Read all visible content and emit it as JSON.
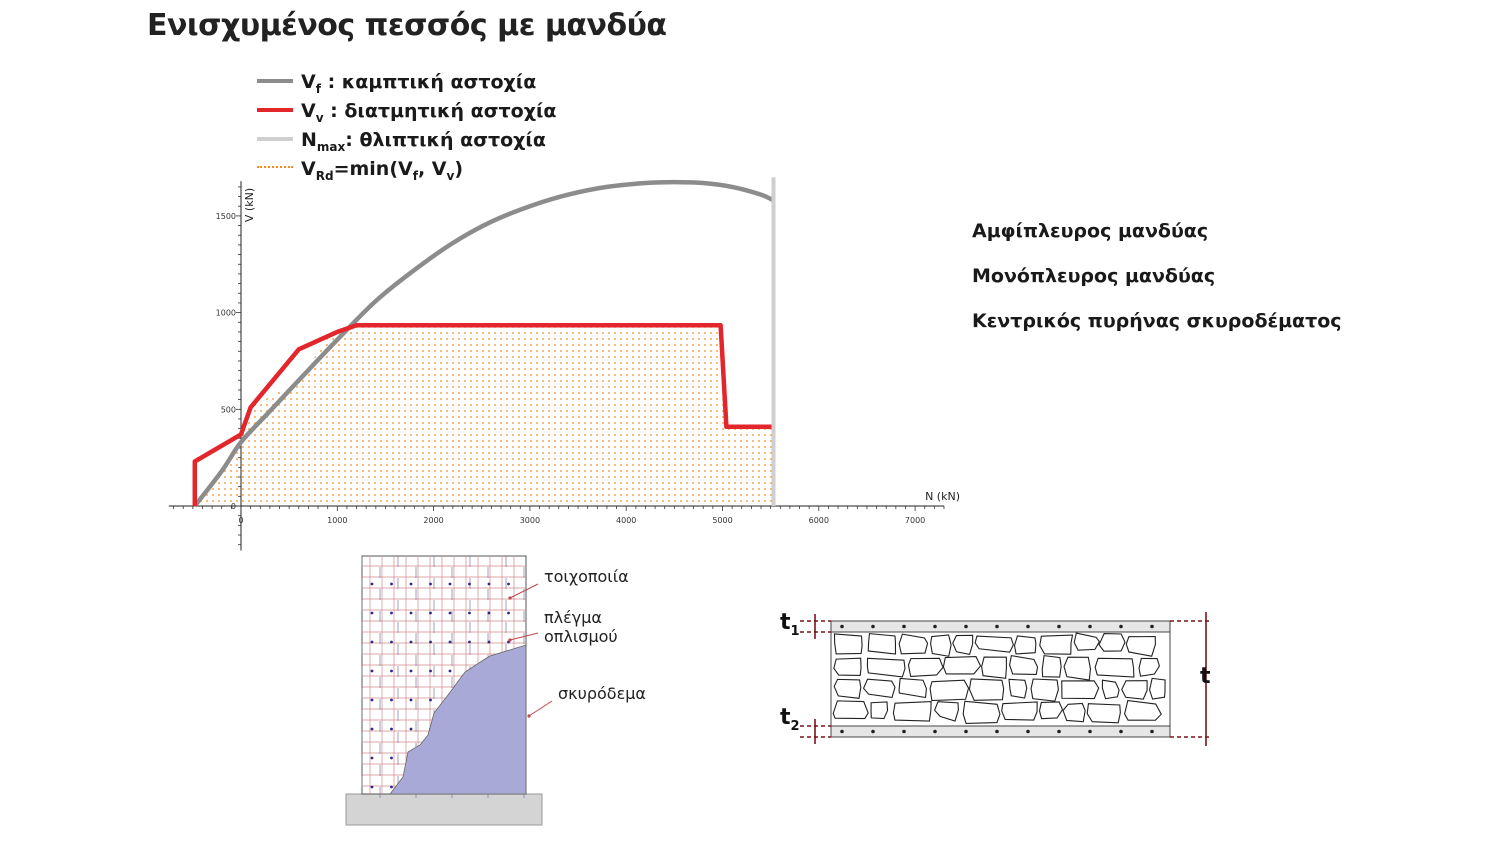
{
  "page": {
    "title": "Ενισχυμένος πεσσός με μανδύα"
  },
  "legend": [
    {
      "symbol": "V",
      "sub": "f",
      "text": "   : καμπτική αστοχία",
      "color": "#8c8c8c",
      "style": "solid"
    },
    {
      "symbol": "V",
      "sub": "v",
      "text": " : διατμητική αστοχία",
      "color": "#e3262b",
      "style": "solid"
    },
    {
      "symbol": "N",
      "sub": "max",
      "text": ": θλιπτική αστοχία",
      "color": "#cfcfcf",
      "style": "solid"
    },
    {
      "symbol": "V",
      "sub": "Rd",
      "text": "=min(V",
      "sub2": "f",
      "text2": ", V",
      "sub3": "v",
      "text3": ")",
      "color": "#f28b1e",
      "style": "dotted"
    }
  ],
  "options": [
    {
      "label": "Αμφίπλευρος μανδύας"
    },
    {
      "label": "Μονόπλευρος μανδύας"
    },
    {
      "label": "Κεντρικός πυρήνας σκυροδέματος"
    }
  ],
  "chart_data": {
    "type": "line",
    "xlabel": "N (kN)",
    "ylabel": "V (kN)",
    "xlim": [
      -750,
      7300
    ],
    "ylim": [
      -230,
      1680
    ],
    "x_ticks": [
      0,
      1000,
      2000,
      3000,
      4000,
      5000,
      6000,
      7000
    ],
    "x_tick_labels": [
      "0",
      "1000",
      "2000",
      "3000",
      "4000",
      "5000",
      "6000",
      "7000"
    ],
    "y_ticks": [
      0,
      500,
      1000,
      1500
    ],
    "y_tick_labels": [
      "0",
      "500",
      "1000",
      "1500"
    ],
    "series": [
      {
        "key": "Vf",
        "color": "#8c8c8c",
        "x": [
          -480,
          -200,
          0,
          300,
          600,
          1000,
          1400,
          1800,
          2200,
          2600,
          3000,
          3400,
          3800,
          4200,
          4500,
          4800,
          5100,
          5400,
          5530
        ],
        "y": [
          0,
          180,
          330,
          490,
          650,
          860,
          1060,
          1220,
          1360,
          1470,
          1550,
          1610,
          1650,
          1670,
          1675,
          1670,
          1650,
          1610,
          1580
        ]
      },
      {
        "key": "Vv",
        "color": "#e3262b",
        "x": [
          -480,
          -480,
          0,
          100,
          600,
          1000,
          1200,
          4980,
          5040,
          5530
        ],
        "y": [
          0,
          230,
          370,
          510,
          810,
          900,
          935,
          935,
          410,
          410
        ]
      },
      {
        "key": "Nmax",
        "color": "#cfcfcf",
        "x": [
          5530,
          5530
        ],
        "y": [
          0,
          1700
        ]
      },
      {
        "key": "VRd",
        "color": "#f28b1e",
        "fill": "dotted",
        "x": [
          -480,
          -200,
          0,
          100,
          600,
          945,
          1200,
          4980,
          5040,
          5530,
          5530
        ],
        "y": [
          0,
          180,
          330,
          510,
          650,
          900,
          935,
          935,
          410,
          410,
          0
        ]
      }
    ]
  },
  "figures": {
    "elevation_labels": [
      "τοιχοποιία",
      "πλέγμα οπλισμού",
      "σκυρόδεμα"
    ],
    "elevation_label_lines": [
      [
        "τοιχοποιία"
      ],
      [
        "πλέγμα",
        "οπλισμού"
      ],
      [
        "σκυρόδεμα"
      ]
    ],
    "section_labels": {
      "t1": "t",
      "t1_sub": "1",
      "t2": "t",
      "t2_sub": "2",
      "t": "t"
    },
    "colors": {
      "concrete": "#a9a9d8",
      "mesh": "#c2464d",
      "base": "#d4d4d4",
      "dimension": "#7a1418"
    }
  }
}
